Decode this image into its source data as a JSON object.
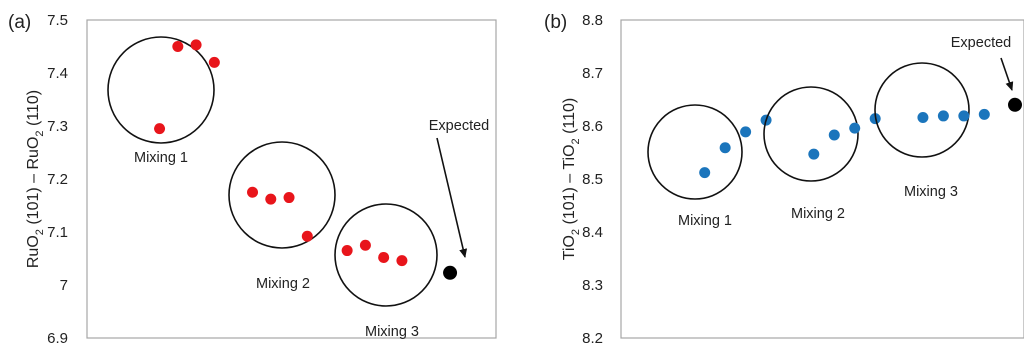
{
  "chart_data": [
    {
      "type": "scatter",
      "panel_label": "(a)",
      "ylabel_parts": [
        "RuO",
        "2",
        " (101) – RuO",
        "2",
        " (110)"
      ],
      "ylim": [
        6.9,
        7.5
      ],
      "yticks": [
        6.9,
        7,
        7.1,
        7.2,
        7.3,
        7.4,
        7.5
      ],
      "ytick_labels": [
        "6.9",
        "7",
        "7.1",
        "7.2",
        "7.3",
        "7.4",
        "7.5"
      ],
      "xlim": [
        0,
        1
      ],
      "grid": false,
      "colors": {
        "mixing": "#e8151b",
        "expected": "#000000",
        "frame": "#a6a6a6"
      },
      "groups": [
        {
          "label": "Mixing 1",
          "points": [
            {
              "x": 0.08,
              "y": 7.295
            },
            {
              "x": 0.135,
              "y": 7.45
            },
            {
              "x": 0.19,
              "y": 7.453
            },
            {
              "x": 0.245,
              "y": 7.42
            }
          ]
        },
        {
          "label": "Mixing 2",
          "points": [
            {
              "x": 0.36,
              "y": 7.175
            },
            {
              "x": 0.415,
              "y": 7.162
            },
            {
              "x": 0.47,
              "y": 7.165
            },
            {
              "x": 0.525,
              "y": 7.092
            }
          ]
        },
        {
          "label": "Mixing 3",
          "points": [
            {
              "x": 0.645,
              "y": 7.065
            },
            {
              "x": 0.7,
              "y": 7.075
            },
            {
              "x": 0.755,
              "y": 7.052
            },
            {
              "x": 0.81,
              "y": 7.046
            }
          ]
        }
      ],
      "expected": {
        "label": "Expected",
        "x": 0.955,
        "y": 7.023
      }
    },
    {
      "type": "scatter",
      "panel_label": "(b)",
      "ylabel_parts": [
        "TiO",
        "2",
        " (101) – TiO",
        "2",
        " (110)"
      ],
      "ylim": [
        8.2,
        8.8
      ],
      "yticks": [
        8.2,
        8.3,
        8.4,
        8.5,
        8.6,
        8.7,
        8.8
      ],
      "ytick_labels": [
        "8.2",
        "8.3",
        "8.4",
        "8.5",
        "8.6",
        "8.7",
        "8.8"
      ],
      "xlim": [
        0,
        1
      ],
      "grid": false,
      "colors": {
        "mixing": "#1b75bc",
        "expected": "#000000",
        "frame": "#a6a6a6"
      },
      "groups": [
        {
          "label": "Mixing 1",
          "points": [
            {
              "x": 0.09,
              "y": 8.512
            },
            {
              "x": 0.15,
              "y": 8.559
            },
            {
              "x": 0.21,
              "y": 8.589
            },
            {
              "x": 0.27,
              "y": 8.611
            }
          ]
        },
        {
          "label": "Mixing 2",
          "points": [
            {
              "x": 0.41,
              "y": 8.547
            },
            {
              "x": 0.47,
              "y": 8.583
            },
            {
              "x": 0.53,
              "y": 8.596
            },
            {
              "x": 0.59,
              "y": 8.614
            }
          ]
        },
        {
          "label": "Mixing 3",
          "points": [
            {
              "x": 0.73,
              "y": 8.616
            },
            {
              "x": 0.79,
              "y": 8.619
            },
            {
              "x": 0.85,
              "y": 8.619
            },
            {
              "x": 0.91,
              "y": 8.622
            }
          ]
        }
      ],
      "expected": {
        "label": "Expected",
        "x": 1.0,
        "y": 8.64
      }
    }
  ]
}
